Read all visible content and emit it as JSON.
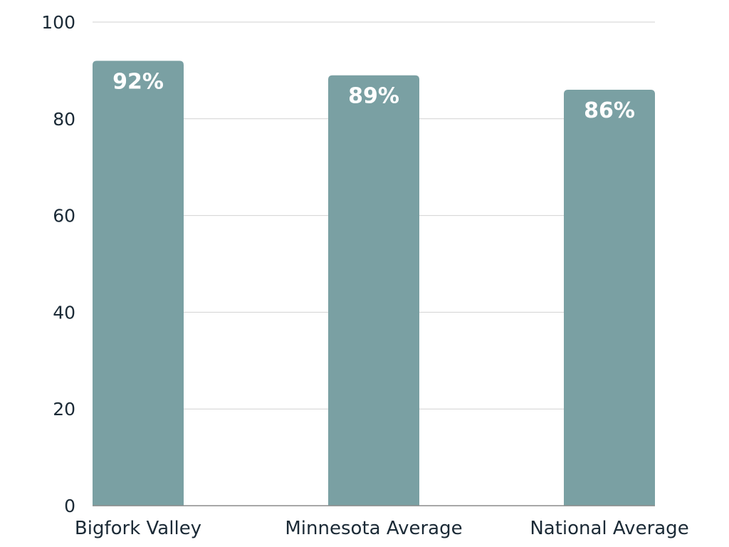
{
  "chart_data": {
    "type": "bar",
    "categories": [
      "Bigfork Valley",
      "Minnesota Average",
      "National Average"
    ],
    "values": [
      92,
      89,
      86
    ],
    "data_labels": [
      "92%",
      "89%",
      "86%"
    ],
    "ylim": [
      0,
      100
    ],
    "yticks": [
      0,
      20,
      40,
      60,
      80,
      100
    ],
    "grid": true,
    "title": "",
    "xlabel": "",
    "ylabel": "",
    "colors": {
      "bar": "#7aa0a3",
      "grid": "#d2d2d2",
      "axis": "#8a8a8a",
      "text": "#1b2a36",
      "data_label": "#ffffff"
    }
  }
}
